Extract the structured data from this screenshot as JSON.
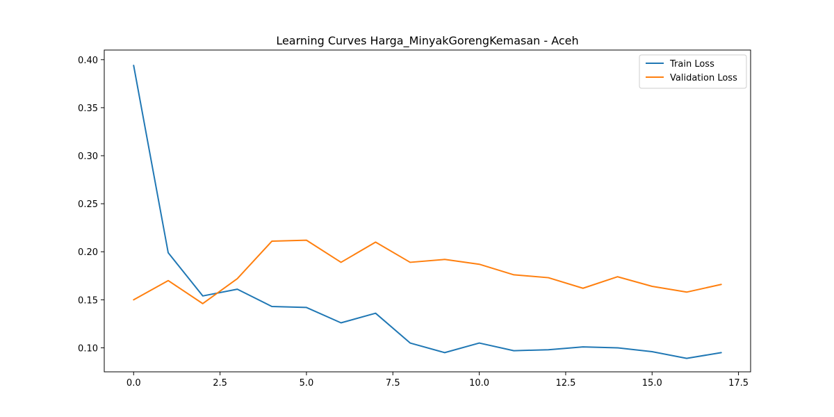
{
  "chart_data": {
    "type": "line",
    "title": "Learning Curves Harga_MinyakGorengKemasan - Aceh",
    "xlabel": "",
    "ylabel": "",
    "xlim": [
      -0.85,
      17.85
    ],
    "ylim": [
      0.075,
      0.41
    ],
    "x_ticks": [
      0.0,
      2.5,
      5.0,
      7.5,
      10.0,
      12.5,
      15.0,
      17.5
    ],
    "x_tick_labels": [
      "0.0",
      "2.5",
      "5.0",
      "7.5",
      "10.0",
      "12.5",
      "15.0",
      "17.5"
    ],
    "y_ticks": [
      0.1,
      0.15,
      0.2,
      0.25,
      0.3,
      0.35,
      0.4
    ],
    "y_tick_labels": [
      "0.10",
      "0.15",
      "0.20",
      "0.25",
      "0.30",
      "0.35",
      "0.40"
    ],
    "grid": false,
    "legend_position": "top-right",
    "x": [
      0,
      1,
      2,
      3,
      4,
      5,
      6,
      7,
      8,
      9,
      10,
      11,
      12,
      13,
      14,
      15,
      16,
      17
    ],
    "series": [
      {
        "name": "Train Loss",
        "color": "#1f77b4",
        "values": [
          0.394,
          0.199,
          0.154,
          0.161,
          0.143,
          0.142,
          0.126,
          0.136,
          0.105,
          0.095,
          0.105,
          0.097,
          0.098,
          0.101,
          0.1,
          0.096,
          0.089,
          0.095
        ]
      },
      {
        "name": "Validation Loss",
        "color": "#ff7f0e",
        "values": [
          0.15,
          0.17,
          0.146,
          0.172,
          0.211,
          0.212,
          0.189,
          0.21,
          0.189,
          0.192,
          0.187,
          0.176,
          0.173,
          0.162,
          0.174,
          0.164,
          0.158,
          0.166
        ]
      }
    ]
  }
}
